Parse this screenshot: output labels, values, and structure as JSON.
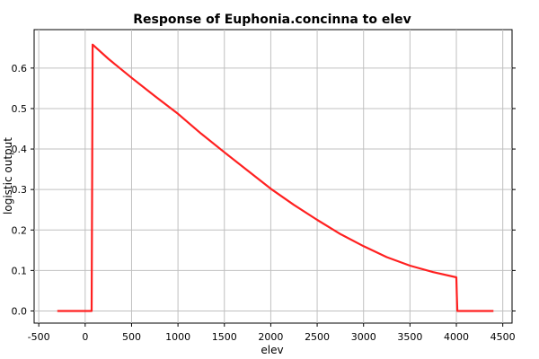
{
  "chart_data": {
    "type": "line",
    "title": "Response of Euphonia.concinna to elev",
    "xlabel": "elev",
    "ylabel": "logistic output",
    "xlim": [
      -550,
      4600
    ],
    "ylim": [
      -0.03,
      0.695
    ],
    "x_ticks": [
      -500,
      0,
      500,
      1000,
      1500,
      2000,
      2500,
      3000,
      3500,
      4000,
      4500
    ],
    "y_ticks": [
      0.0,
      0.1,
      0.2,
      0.3,
      0.4,
      0.5,
      0.6
    ],
    "x_tick_labels": [
      "-500",
      "0",
      "500",
      "1000",
      "1500",
      "2000",
      "2500",
      "3000",
      "3500",
      "4000",
      "4500"
    ],
    "y_tick_labels": [
      "0.0",
      "0.1",
      "0.2",
      "0.3",
      "0.4",
      "0.5",
      "0.6"
    ],
    "grid": true,
    "series": [
      {
        "color": "#ff2020",
        "x": [
          -300,
          70,
          75,
          80,
          250,
          500,
          750,
          1000,
          1250,
          1500,
          1750,
          2000,
          2250,
          2500,
          2750,
          3000,
          3250,
          3500,
          3750,
          4000,
          4005,
          4010,
          4400
        ],
        "y": [
          0.0,
          0.0,
          0.33,
          0.658,
          0.623,
          0.576,
          0.531,
          0.487,
          0.438,
          0.392,
          0.347,
          0.302,
          0.262,
          0.225,
          0.19,
          0.16,
          0.133,
          0.112,
          0.096,
          0.083,
          0.04,
          0.0,
          0.0
        ]
      }
    ]
  }
}
